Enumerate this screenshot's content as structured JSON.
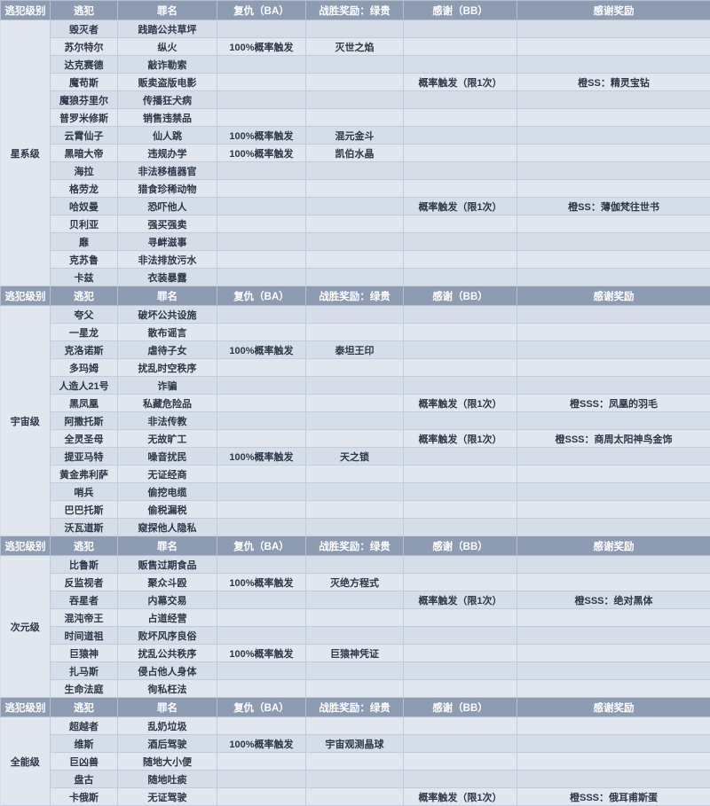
{
  "colors": {
    "header_bg": "#8e9cb3",
    "header_text": "#ffffff",
    "row_odd": "#e2e7ef",
    "row_even": "#d5dde8",
    "text": "#2d3748",
    "highlight": "#d81e1e",
    "border": "#c2cbd9"
  },
  "columns": [
    "逃犯级别",
    "逃犯",
    "罪名",
    "复仇（BA）",
    "战胜奖励：绿贵",
    "感谢（BB）",
    "感谢奖励"
  ],
  "sections": [
    {
      "level": "星系级",
      "rows": [
        {
          "name": "毁灭者",
          "crime": "践踏公共草坪"
        },
        {
          "name": "苏尔特尔",
          "crime": "纵火",
          "ba": "100%概率触发",
          "green": "灭世之焰",
          "red": true
        },
        {
          "name": "达克赛德",
          "crime": "敲诈勒索"
        },
        {
          "name": "魔苟斯",
          "crime": "贩卖盗版电影",
          "bb": "概率触发（限1次）",
          "reward": "橙SS：精灵宝钻",
          "red": true
        },
        {
          "name": "魔狼芬里尔",
          "crime": "传播狂犬病"
        },
        {
          "name": "普罗米修斯",
          "crime": "销售违禁品"
        },
        {
          "name": "云霄仙子",
          "crime": "仙人跳",
          "ba": "100%概率触发",
          "green": "混元金斗",
          "red": true
        },
        {
          "name": "黑暗大帝",
          "crime": "违规办学",
          "ba": "100%概率触发",
          "green": "凯伯水晶",
          "red": true
        },
        {
          "name": "海拉",
          "crime": "非法移植器官"
        },
        {
          "name": "格劳龙",
          "crime": "猎食珍稀动物"
        },
        {
          "name": "哈奴曼",
          "crime": "恐吓他人",
          "bb": "概率触发（限1次）",
          "reward": "橙SS：薄伽梵往世书",
          "red": true
        },
        {
          "name": "贝利亚",
          "crime": "强买强卖"
        },
        {
          "name": "靡",
          "crime": "寻衅滋事"
        },
        {
          "name": "克苏鲁",
          "crime": "非法排放污水"
        },
        {
          "name": "卡兹",
          "crime": "衣装暴露"
        }
      ]
    },
    {
      "level": "宇宙级",
      "rows": [
        {
          "name": "夸父",
          "crime": "破坏公共设施"
        },
        {
          "name": "一星龙",
          "crime": "散布谣言"
        },
        {
          "name": "克洛诺斯",
          "crime": "虐待子女",
          "ba": "100%概率触发",
          "green": "泰坦王印",
          "red": true
        },
        {
          "name": "多玛姆",
          "crime": "扰乱时空秩序"
        },
        {
          "name": "人造人21号",
          "crime": "诈骗"
        },
        {
          "name": "黑凤凰",
          "crime": "私藏危险品",
          "bb": "概率触发（限1次）",
          "reward": "橙SSS：凤凰的羽毛",
          "red": true
        },
        {
          "name": "阿撒托斯",
          "crime": "非法传教"
        },
        {
          "name": "全灵圣母",
          "crime": "无故旷工",
          "bb": "概率触发（限1次）",
          "reward": "橙SSS：商周太阳神鸟金饰",
          "red": true
        },
        {
          "name": "提亚马特",
          "crime": "噪音扰民",
          "ba": "100%概率触发",
          "green": "天之锁",
          "red": true
        },
        {
          "name": "黄金弗利萨",
          "crime": "无证经商"
        },
        {
          "name": "哨兵",
          "crime": "偷挖电缆"
        },
        {
          "name": "巴巴托斯",
          "crime": "偷税漏税"
        },
        {
          "name": "沃瓦道斯",
          "crime": "窥探他人隐私"
        }
      ]
    },
    {
      "level": "次元级",
      "rows": [
        {
          "name": "比鲁斯",
          "crime": "贩售过期食品"
        },
        {
          "name": "反监视者",
          "crime": "聚众斗殴",
          "ba": "100%概率触发",
          "green": "灭绝方程式",
          "red": true
        },
        {
          "name": "吞星者",
          "crime": "内幕交易",
          "bb": "概率触发（限1次）",
          "reward": "橙SSS：绝对黑体",
          "red": true
        },
        {
          "name": "混沌帝王",
          "crime": "占道经营"
        },
        {
          "name": "时间道祖",
          "crime": "败坏风序良俗"
        },
        {
          "name": "巨猿神",
          "crime": "扰乱公共秩序",
          "ba": "100%概率触发",
          "green": "巨猿神凭证",
          "red": true
        },
        {
          "name": "扎马斯",
          "crime": "侵占他人身体"
        },
        {
          "name": "生命法庭",
          "crime": "徇私枉法"
        }
      ]
    },
    {
      "level": "全能级",
      "rows": [
        {
          "name": "超越者",
          "crime": "乱奶垃圾"
        },
        {
          "name": "维斯",
          "crime": "酒后驾驶",
          "ba": "100%概率触发",
          "green": "宇宙观测晶球",
          "red": true
        },
        {
          "name": "巨凶兽",
          "crime": "随地大小便"
        },
        {
          "name": "盘古",
          "crime": "随地吐痰"
        },
        {
          "name": "卡俄斯",
          "crime": "无证驾驶",
          "bb": "概率触发（限1次）",
          "reward": "橙SSS：俄耳甫斯蛋",
          "red": true
        }
      ]
    }
  ]
}
